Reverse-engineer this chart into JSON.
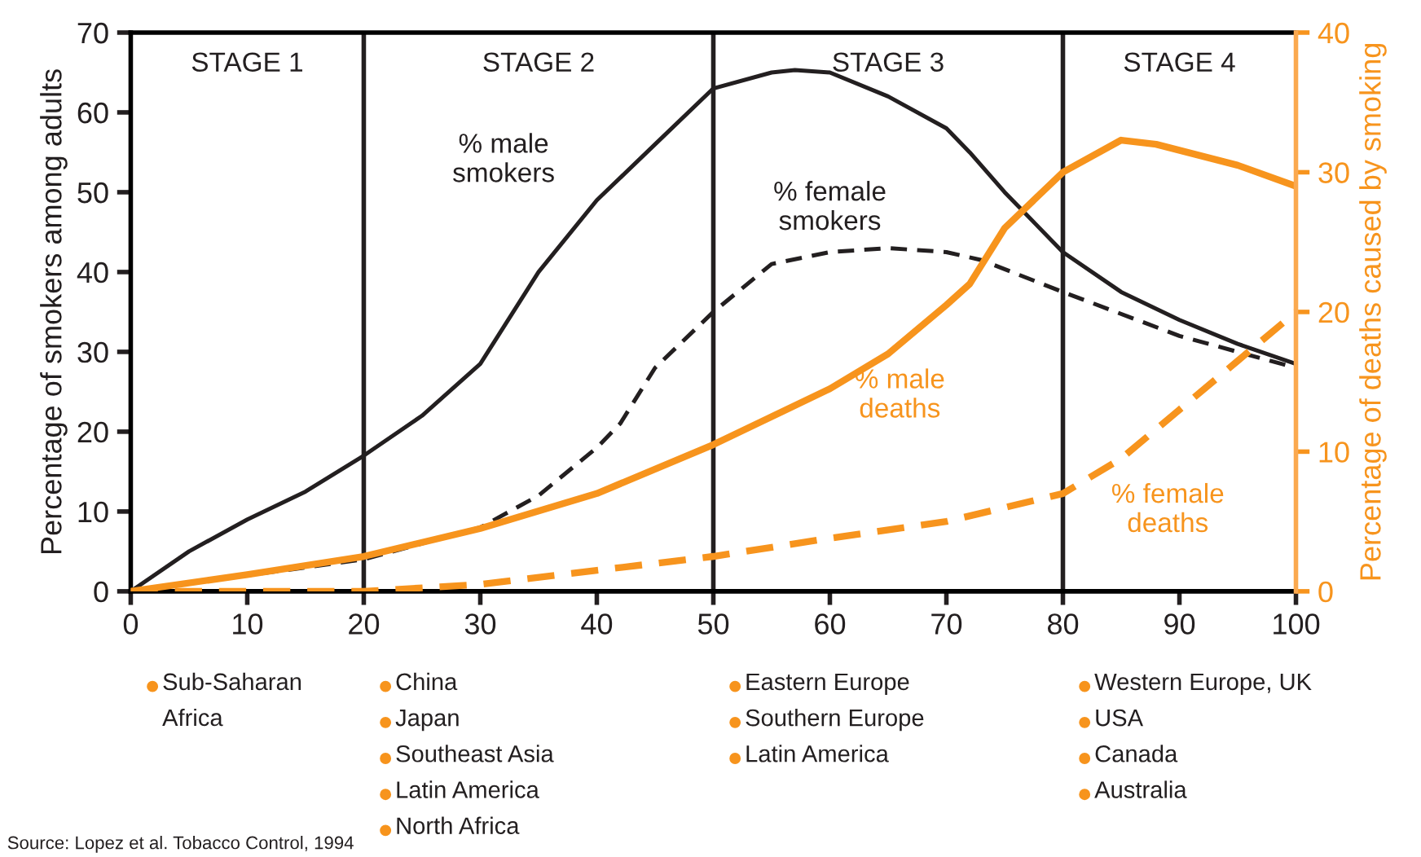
{
  "chart_data": {
    "type": "line",
    "ylabel": "Percentage of smokers among adults",
    "y2label": "Percentage of deaths caused by smoking",
    "xlim": [
      0,
      100
    ],
    "xticks": [
      0,
      10,
      20,
      30,
      40,
      50,
      60,
      70,
      80,
      90,
      100
    ],
    "ylim": [
      0,
      70
    ],
    "yticks": [
      0,
      10,
      20,
      30,
      40,
      50,
      60,
      70
    ],
    "y2lim": [
      0,
      40
    ],
    "y2ticks": [
      0,
      10,
      20,
      30,
      40
    ],
    "grid": false,
    "legend": false,
    "marker": "none",
    "series": [
      {
        "name": "% male smokers",
        "color": "#231f20",
        "line_style": "solid",
        "x": [
          0,
          5,
          10,
          15,
          20,
          25,
          30,
          35,
          40,
          45,
          50,
          55,
          57,
          60,
          65,
          70,
          72,
          75,
          80,
          85,
          90,
          95,
          100
        ],
        "values": [
          0,
          5,
          9,
          12.5,
          17,
          22,
          28.5,
          40,
          49,
          56,
          63,
          65,
          65.3,
          65,
          62,
          58,
          55,
          50,
          42.5,
          37.5,
          34,
          31,
          28.5
        ]
      },
      {
        "name": "% female smokers",
        "color": "#231f20",
        "line_style": "dashed",
        "x": [
          0,
          10,
          20,
          30,
          35,
          40,
          42,
          45,
          50,
          55,
          60,
          65,
          70,
          73,
          80,
          90,
          100
        ],
        "values": [
          0,
          2,
          4,
          8,
          12,
          18,
          21,
          28,
          35,
          41,
          42.5,
          43,
          42.5,
          41.5,
          37.5,
          32,
          28
        ]
      },
      {
        "name": "% male deaths",
        "color": "#f7941d",
        "line_style": "solid",
        "axis": "y2",
        "x": [
          0,
          10,
          20,
          30,
          40,
          50,
          55,
          60,
          65,
          70,
          72,
          75,
          80,
          85,
          88,
          95,
          100
        ],
        "values": [
          0,
          1.2,
          2.5,
          4.5,
          7,
          10.5,
          12.5,
          14.5,
          17,
          20.5,
          22,
          26,
          30,
          32.3,
          32,
          30.5,
          29
        ]
      },
      {
        "name": "% female deaths",
        "color": "#f7941d",
        "line_style": "dashed",
        "axis": "y2",
        "x": [
          0,
          20,
          30,
          40,
          50,
          60,
          70,
          80,
          85,
          90,
          95,
          100
        ],
        "values": [
          0,
          0,
          0.5,
          1.5,
          2.5,
          3.8,
          5,
          7,
          9.5,
          13,
          16.5,
          20
        ]
      }
    ],
    "ref_lines": [
      {
        "axis": "x",
        "value": 20,
        "color": "#231f20"
      },
      {
        "axis": "x",
        "value": 50,
        "color": "#231f20"
      },
      {
        "axis": "x",
        "value": 80,
        "color": "#231f20"
      }
    ],
    "annotations": [
      "STAGE 1",
      "STAGE 2",
      "STAGE 3",
      "STAGE 4",
      "Sub-Saharan\nAfrica",
      "China",
      "Japan",
      "Southeast Asia",
      "Latin America",
      "North Africa",
      "Eastern Europe",
      "Southern Europe",
      "Latin America",
      "Western Europe, UK",
      "USA",
      "Canada",
      "Australia",
      "Source: Lopez et al. Tobacco Control, 1994"
    ]
  }
}
